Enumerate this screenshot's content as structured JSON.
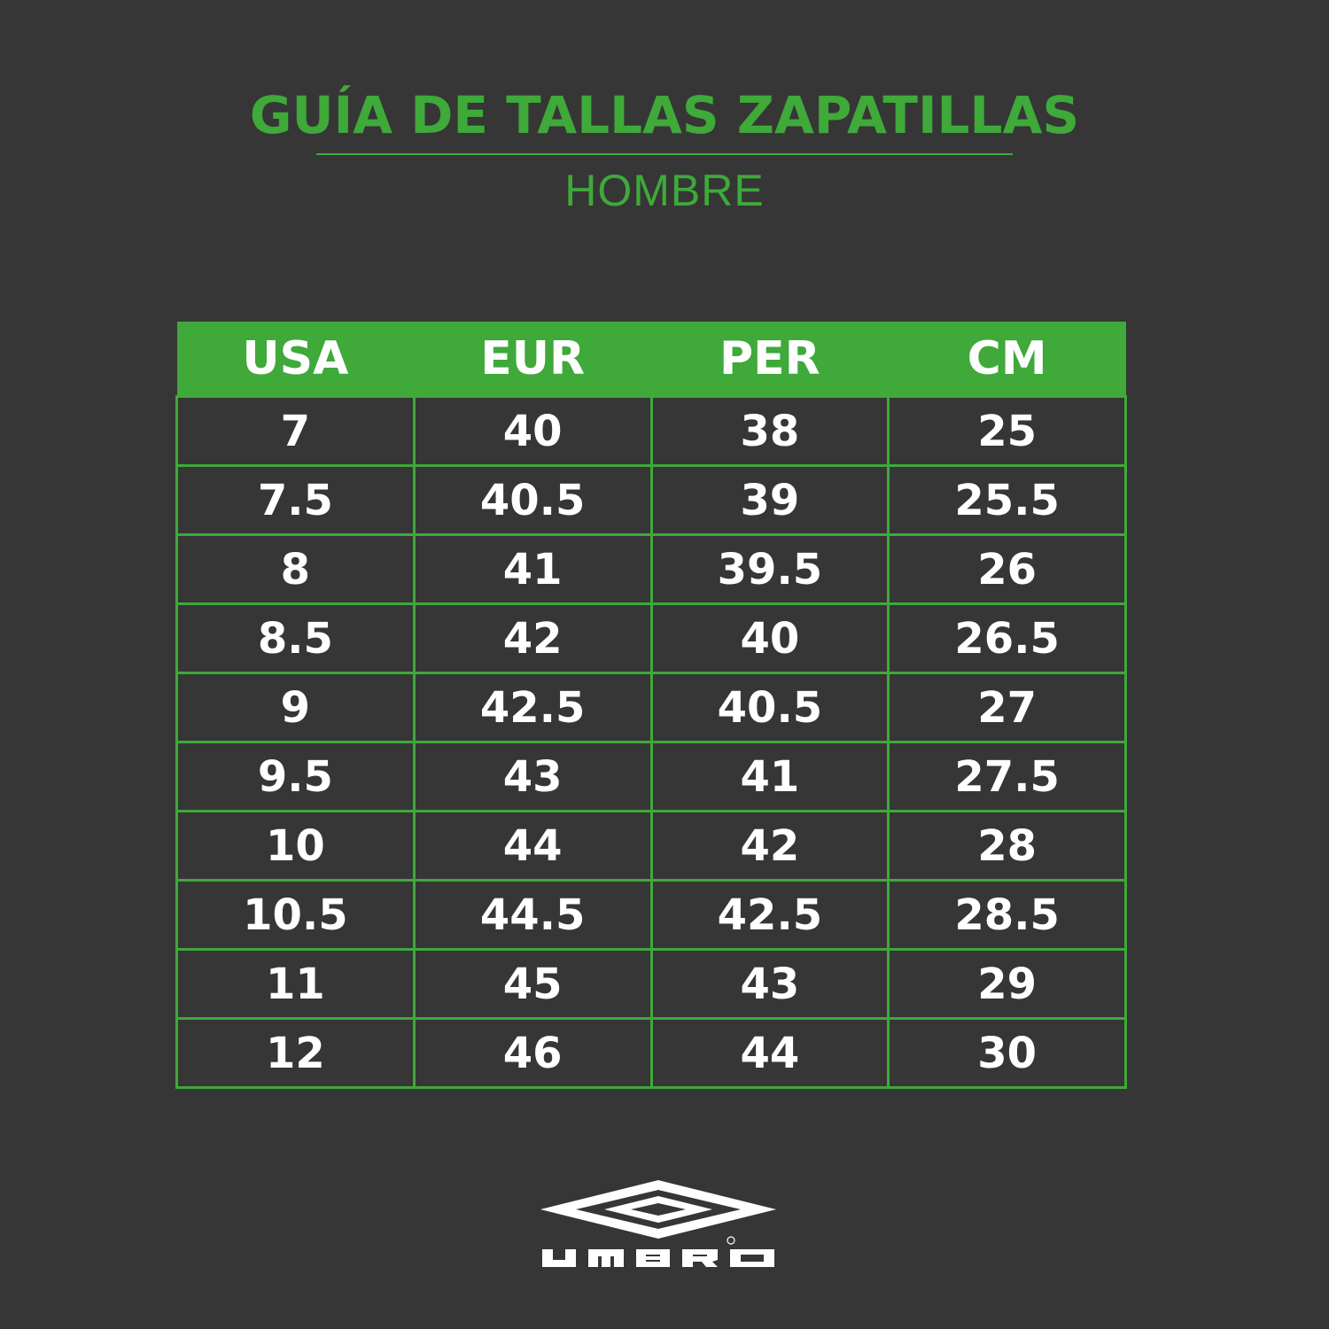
{
  "header": {
    "title": "GUÍA DE TALLAS ZAPATILLAS",
    "subtitle": "HOMBRE"
  },
  "colors": {
    "accent": "#3fa93a",
    "background": "#363636",
    "text": "#ffffff"
  },
  "table": {
    "columns": [
      "USA",
      "EUR",
      "PER",
      "CM"
    ],
    "rows": [
      [
        "7",
        "40",
        "38",
        "25"
      ],
      [
        "7.5",
        "40.5",
        "39",
        "25.5"
      ],
      [
        "8",
        "41",
        "39.5",
        "26"
      ],
      [
        "8.5",
        "42",
        "40",
        "26.5"
      ],
      [
        "9",
        "42.5",
        "40.5",
        "27"
      ],
      [
        "9.5",
        "43",
        "41",
        "27.5"
      ],
      [
        "10",
        "44",
        "42",
        "28"
      ],
      [
        "10.5",
        "44.5",
        "42.5",
        "28.5"
      ],
      [
        "11",
        "45",
        "43",
        "29"
      ],
      [
        "12",
        "46",
        "44",
        "30"
      ]
    ]
  },
  "logo": {
    "brand": "UMBRO"
  }
}
